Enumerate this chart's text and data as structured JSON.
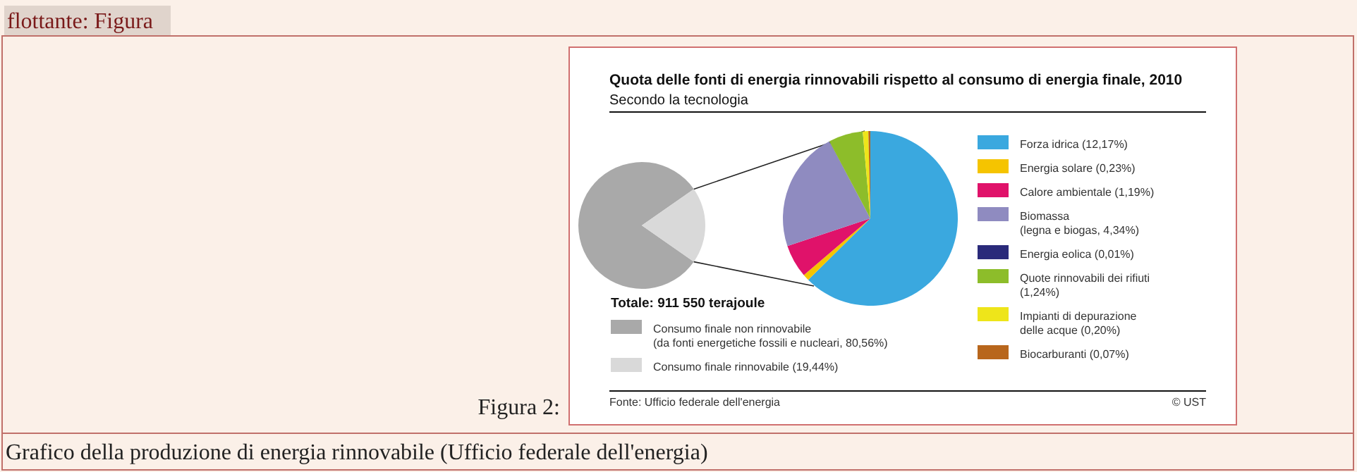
{
  "chart_data": [
    {
      "type": "pie",
      "title": "Quota delle fonti di energia rinnovabili rispetto al consumo di energia finale, 2010",
      "subtitle": "Secondo la tecnologia",
      "categories": [
        "Consumo finale non rinnovabile\n(da fonti energetiche fossili e nucleari, 80,56%)",
        "Consumo finale rinnovabile (19,44%)"
      ],
      "values": [
        80.56,
        19.44
      ],
      "colors": [
        "#a9a9a9",
        "#d9d9d9"
      ],
      "legend": "bottom",
      "annotations": [
        "Totale: 911 550 terajoule",
        "Fonte: Ufficio federale dell'energia",
        "© UST",
        "flottante: Figura",
        "Figura 2:",
        "Grafico della produzione di energia rinnovabile (Ufficio federale dell'energia)"
      ]
    },
    {
      "type": "pie",
      "categories": [
        "Forza idrica (12,17%)",
        "Energia solare (0,23%)",
        "Calore ambientale (1,19%)",
        "Biomassa\n(legna e biogas, 4,34%)",
        "Energia eolica (0,01%)",
        "Quote rinnovabili dei rifiuti\n(1,24%)",
        "Impianti di depurazione\ndelle acque (0,20%)",
        "Biocarburanti (0,07%)"
      ],
      "values": [
        12.17,
        0.23,
        1.19,
        4.34,
        0.01,
        1.24,
        0.2,
        0.07
      ],
      "colors": [
        "#3aa8df",
        "#f5c400",
        "#e0126a",
        "#8f8bc0",
        "#2a2a7a",
        "#8dbd2a",
        "#eee51a",
        "#b8661c"
      ],
      "legend": "right"
    }
  ]
}
